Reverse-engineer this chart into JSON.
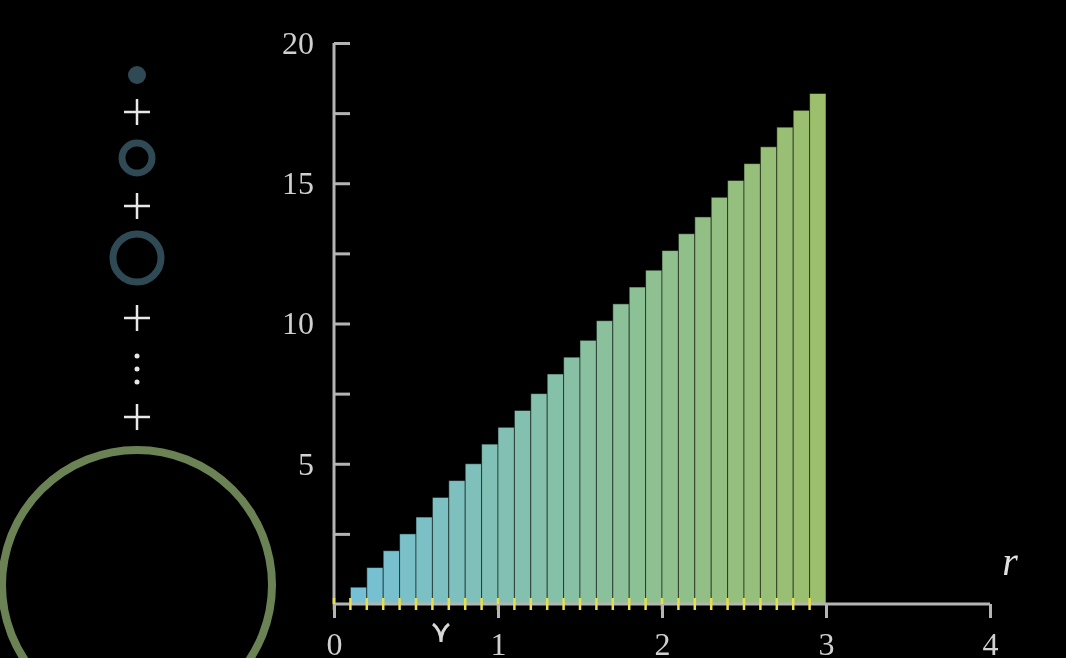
{
  "chart_data": {
    "type": "histogram",
    "xlabel": "r",
    "bins": [
      0,
      0.1,
      0.2,
      0.3,
      0.4,
      0.5,
      0.6,
      0.7,
      0.8,
      0.9,
      1,
      1.1,
      1.2,
      1.3,
      1.4,
      1.5,
      1.6,
      1.7,
      1.8,
      1.9,
      2,
      2.1,
      2.2,
      2.3,
      2.4,
      2.5,
      2.6,
      2.7,
      2.8,
      2.9,
      3
    ],
    "values": [
      0,
      0.6,
      1.3,
      1.9,
      2.5,
      3.1,
      3.8,
      4.4,
      5.0,
      5.7,
      6.3,
      6.9,
      7.5,
      8.2,
      8.8,
      9.4,
      10.1,
      10.7,
      11.3,
      11.9,
      12.6,
      13.2,
      13.8,
      14.5,
      15.1,
      15.7,
      16.3,
      17.0,
      17.6,
      18.2
    ],
    "colors": [
      "#74c0d8",
      "#75c0d4",
      "#77c0d1",
      "#78c0cd",
      "#79c0c9",
      "#7bc0c5",
      "#7cc0c2",
      "#7dc0be",
      "#7fc0ba",
      "#80c0b6",
      "#81c0b3",
      "#83c0af",
      "#84c0ab",
      "#85c0a8",
      "#87c0a4",
      "#88c0a0",
      "#8ac09c",
      "#8bc099",
      "#8cc095",
      "#8ec091",
      "#8fc08e",
      "#90c08a",
      "#92bf86",
      "#93bf82",
      "#94bf7f",
      "#96bf7b",
      "#97bf77",
      "#98bf74",
      "#9abf70",
      "#9bbf6c"
    ],
    "xlim": [
      0,
      4
    ],
    "xticks": [
      0,
      1,
      2,
      3,
      4
    ],
    "ylim": [
      0,
      20
    ],
    "yticks": [
      {
        "value": 2.5,
        "label": null
      },
      5,
      {
        "value": 7.5,
        "label": null
      },
      10,
      {
        "value": 12.5,
        "label": null
      },
      15,
      {
        "value": 17.5,
        "label": null
      },
      20
    ],
    "grid": false
  }
}
